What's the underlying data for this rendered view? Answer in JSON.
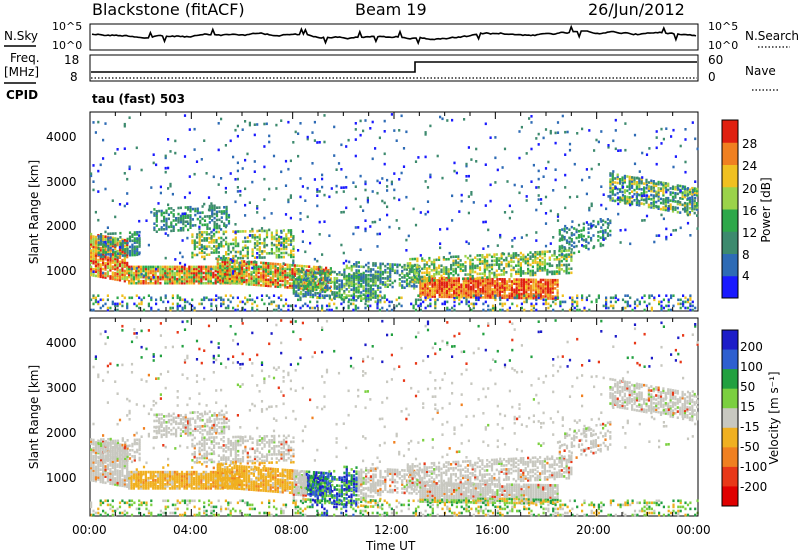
{
  "header": {
    "station": "Blackstone (fitACF)",
    "beam": "Beam 19",
    "date": "26/Jun/2012"
  },
  "strip_labels": {
    "nsky": "N.Sky",
    "nsearch": "N.Search",
    "freq_label": "Freq.",
    "freq_unit": "[MHz]",
    "cpid": "CPID",
    "nave": "Nave",
    "cpid_value": "tau (fast) 503",
    "noise_ticks": [
      "10^5",
      "10^0"
    ],
    "freq_ticks": [
      "18",
      "8"
    ],
    "nave_ticks": [
      "60",
      "0"
    ]
  },
  "chart_data": [
    {
      "type": "heatmap",
      "title": "",
      "xlabel": "",
      "ylabel": "Slant Range [km]",
      "colorbar_label": "Power [dB]",
      "yticks": [
        "1000",
        "2000",
        "3000",
        "4000"
      ],
      "ylim": [
        180,
        4560
      ],
      "xlim": [
        0,
        24
      ],
      "colorbar_ticks": [
        "4",
        "8",
        "12",
        "16",
        "20",
        "24",
        "28"
      ],
      "colors": [
        "#1a1aff",
        "#2e6bb5",
        "#3d8a6e",
        "#2ea84a",
        "#9bd34a",
        "#f0c020",
        "#f08020",
        "#e02010"
      ]
    },
    {
      "type": "heatmap",
      "title": "",
      "xlabel": "Time UT",
      "ylabel": "Slant Range [km]",
      "colorbar_label": "Velocity [m s⁻¹]",
      "yticks": [
        "1000",
        "2000",
        "3000",
        "4000"
      ],
      "ylim": [
        180,
        4560
      ],
      "xlim": [
        0,
        24
      ],
      "xticks": [
        "00:00",
        "04:00",
        "08:00",
        "12:00",
        "16:00",
        "20:00",
        "00:00"
      ],
      "colorbar_ticks": [
        "200",
        "100",
        "50",
        "15",
        "-15",
        "-50",
        "-100",
        "-200"
      ],
      "colors": [
        "#1c1cc8",
        "#2e5fd0",
        "#22a040",
        "#7bd040",
        "#c8c8c0",
        "#f0b020",
        "#f08020",
        "#e83818",
        "#e00000"
      ]
    }
  ]
}
